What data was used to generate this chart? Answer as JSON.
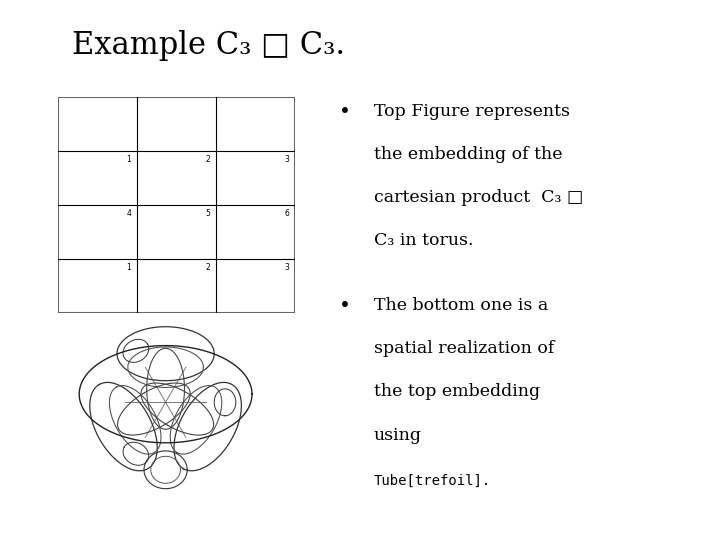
{
  "title": "Example C₃ □ C₃.",
  "title_fontsize": 22,
  "background_color": "#ffffff",
  "bullet1_lines": [
    "Top Figure represents",
    "the embedding of the",
    "cartesian product  C₃ □",
    "C₃ in torus."
  ],
  "bullet2_lines": [
    "The bottom one is a",
    "spatial realization of",
    "the top embedding",
    "using"
  ],
  "bullet2_code": "Tube[trefoil].",
  "text_color": "#000000",
  "grid_color": "#666666"
}
